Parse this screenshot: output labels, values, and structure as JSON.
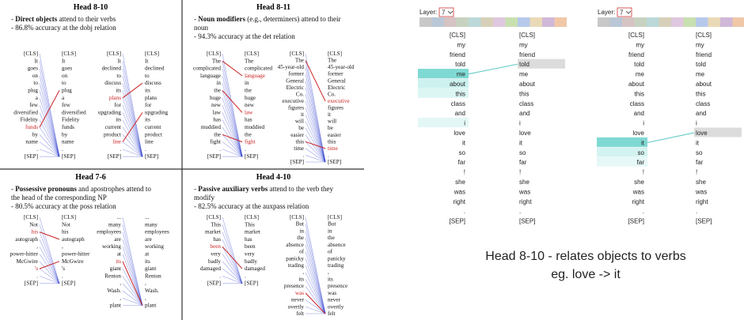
{
  "figure": {
    "panels": [
      {
        "title": "Head 8-10",
        "bullets": [
          {
            "lead": "- ",
            "bold": "Direct objects",
            "rest": " attend to their verbs"
          },
          {
            "lead": "- ",
            "rest": "86.8% accuracy at the dobj relation"
          }
        ],
        "examples": [
          {
            "tokens": [
              "[CLS]",
              "It",
              "goes",
              "on",
              "to",
              "plug",
              "a",
              "few",
              "diversified",
              "Fidelity",
              "funds",
              "by",
              "name",
              ".",
              "[SEP]"
            ],
            "highlight_left": [
              10
            ],
            "highlight_right": [],
            "red_lines": [
              [
                10,
                5
              ]
            ]
          },
          {
            "tokens": [
              "[CLS]",
              "It",
              "declined",
              "to",
              "discuss",
              "its",
              "plans",
              "for",
              "upgrading",
              "its",
              "current",
              "product",
              "line",
              ".",
              "[SEP]"
            ],
            "highlight_left": [
              6,
              12
            ],
            "highlight_right": [],
            "red_lines": [
              [
                6,
                4
              ],
              [
                12,
                8
              ]
            ]
          }
        ]
      },
      {
        "title": "Head 8-11",
        "bullets": [
          {
            "lead": "- ",
            "bold": "Noun modifiers",
            "rest": " (e.g., determiners) attend to their noun"
          },
          {
            "lead": "- ",
            "rest": "94.3% accuracy at the det relation"
          }
        ],
        "examples": [
          {
            "tokens": [
              "[CLS]",
              "The",
              "complicated",
              "language",
              "in",
              "the",
              "huge",
              "new",
              "law",
              "has",
              "muddied",
              "the",
              "fight",
              ".",
              "[SEP]"
            ],
            "highlight_left": [],
            "highlight_right": [
              3,
              8,
              12
            ],
            "red_lines": [
              [
                1,
                3
              ],
              [
                5,
                8
              ],
              [
                11,
                12
              ]
            ]
          },
          {
            "tokens": [
              "[CLS]",
              "The",
              "45-year-old",
              "former",
              "General",
              "Electric",
              "Co.",
              "executive",
              "figures",
              "it",
              "will",
              "be",
              "easier",
              "this",
              "time",
              ".",
              "[SEP]"
            ],
            "highlight_left": [],
            "highlight_right": [
              7,
              14
            ],
            "red_lines": [
              [
                1,
                7
              ],
              [
                13,
                14
              ]
            ]
          }
        ]
      },
      {
        "title": "Head 7-6",
        "bullets": [
          {
            "lead": "- ",
            "bold": "Possessive pronouns",
            "rest": " and apostrophes attend to the head of the corresponding NP"
          },
          {
            "lead": "- ",
            "rest": "80.5% accuracy at the poss relation"
          }
        ],
        "examples": [
          {
            "tokens": [
              "[CLS]",
              "Not",
              "his",
              "autograph",
              ",",
              "power-hitter",
              "McGwire",
              "'s",
              ".",
              "[SEP]"
            ],
            "highlight_left": [
              2,
              7
            ],
            "highlight_right": [],
            "red_lines": [
              [
                2,
                3
              ],
              [
                7,
                6
              ]
            ]
          },
          {
            "tokens": [
              "...",
              "many",
              "employees",
              "are",
              "working",
              "at",
              "its",
              "giant",
              "Renton",
              ",",
              "Wash.",
              ",",
              "plant"
            ],
            "highlight_left": [
              6
            ],
            "highlight_right": [],
            "red_lines": [
              [
                6,
                12
              ]
            ]
          }
        ]
      },
      {
        "title": "Head 4-10",
        "bullets": [
          {
            "lead": "- ",
            "bold": "Passive auxiliary verbs",
            "rest": " attend to the verb they modify"
          },
          {
            "lead": "- ",
            "rest": "82.5% accuracy at the auxpass relation"
          }
        ],
        "examples": [
          {
            "tokens": [
              "[CLS]",
              "This",
              "market",
              "has",
              "been",
              "very",
              "badly",
              "damaged",
              ".",
              "[SEP]"
            ],
            "highlight_left": [
              4
            ],
            "highlight_right": [],
            "red_lines": [
              [
                4,
                7
              ]
            ]
          },
          {
            "tokens": [
              "[CLS]",
              "But",
              "in",
              "the",
              "absence",
              "of",
              "panicky",
              "trading",
              ",",
              "its",
              "presence",
              "was",
              "never",
              "overtly",
              "felt"
            ],
            "highlight_left": [
              11
            ],
            "highlight_right": [],
            "red_lines": [
              [
                11,
                14
              ]
            ]
          }
        ]
      }
    ]
  },
  "viz": {
    "layer_label": "Layer:",
    "layer": "7",
    "tokens": [
      "[CLS]",
      "my",
      "friend",
      "told",
      "me",
      "about",
      "this",
      "class",
      "and",
      "i",
      "love",
      "it",
      "so",
      "far",
      "!",
      "she",
      "was",
      "right",
      ".",
      "[SEP]"
    ],
    "panels": [
      {
        "left_shades": [
          {
            "index": 4,
            "color": "#7fd9d3"
          },
          {
            "index": 5,
            "color": "#cdf1ef"
          },
          {
            "index": 6,
            "color": "#dcf6f4"
          },
          {
            "index": 9,
            "color": "#e3f7f6"
          }
        ],
        "right_box": 3,
        "line": [
          4,
          3
        ]
      },
      {
        "left_shades": [
          {
            "index": 11,
            "color": "#7fd9d3"
          },
          {
            "index": 12,
            "color": "#d3f3f1"
          },
          {
            "index": 13,
            "color": "#e6f8f7"
          }
        ],
        "right_box": 10,
        "line": [
          11,
          10
        ]
      }
    ]
  },
  "caption": [
    "Head 8-10 - relates objects to verbs",
    "eg. love -> it"
  ]
}
